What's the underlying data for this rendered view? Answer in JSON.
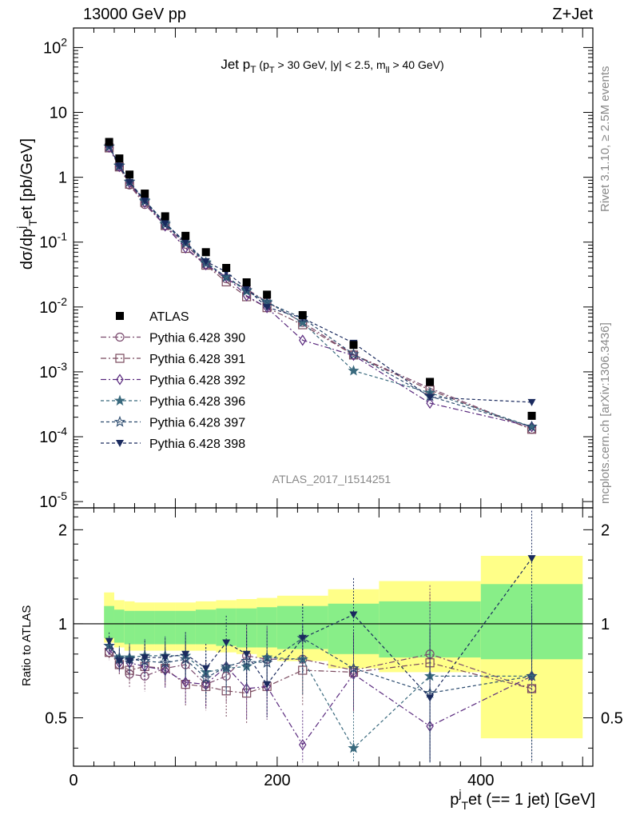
{
  "header": {
    "left": "13000 GeV pp",
    "right": "Z+Jet"
  },
  "side_labels": {
    "rivet": "Rivet 3.1.10, ≥ 2.5M events",
    "mcplots": "mcplots.cern.ch [arXiv:1306.3436]"
  },
  "chart_data": {
    "type": "scatter",
    "title": "Jet p_T (p_T > 30 GeV, |y| < 2.5, m_ll > 40 GeV)",
    "analysis_label": "ATLAS_2017_I1514251",
    "xlabel": "p_T^j et (== 1 jet) [GeV]",
    "ylabel": "dσ/dp_T^j et [pb/GeV]",
    "ratio_ylabel": "Ratio to ATLAS",
    "xlim": [
      0,
      510
    ],
    "ylim": [
      8e-06,
      200
    ],
    "yscale": "log",
    "ratio_ylim": [
      0.35,
      2.35
    ],
    "x_ticks": [
      "0",
      "200",
      "400"
    ],
    "y_ticks": [
      "10^-5",
      "10^-4",
      "10^-3",
      "10^-2",
      "10^-1",
      "1",
      "10",
      "10^2"
    ],
    "ratio_ticks": [
      "0.5",
      "1",
      "2"
    ],
    "legend_position": "left-middle",
    "bins": [
      [
        30,
        40
      ],
      [
        40,
        50
      ],
      [
        50,
        60
      ],
      [
        60,
        80
      ],
      [
        80,
        100
      ],
      [
        100,
        120
      ],
      [
        120,
        140
      ],
      [
        140,
        160
      ],
      [
        160,
        180
      ],
      [
        180,
        200
      ],
      [
        200,
        250
      ],
      [
        250,
        300
      ],
      [
        300,
        400
      ],
      [
        400,
        500
      ]
    ],
    "x": [
      35,
      45,
      55,
      70,
      90,
      110,
      130,
      150,
      170,
      190,
      225,
      275,
      350,
      450
    ],
    "data": {
      "name": "ATLAS",
      "values": [
        3.5,
        1.95,
        1.1,
        0.56,
        0.25,
        0.125,
        0.07,
        0.04,
        0.024,
        0.0155,
        0.0075,
        0.0026,
        0.0007,
        0.00021
      ],
      "band_green_lo": [
        0.9,
        0.87,
        0.86,
        0.86,
        0.86,
        0.86,
        0.86,
        0.85,
        0.84,
        0.84,
        0.83,
        0.8,
        0.78,
        0.77
      ],
      "band_green_hi": [
        1.14,
        1.11,
        1.1,
        1.1,
        1.1,
        1.1,
        1.11,
        1.12,
        1.12,
        1.13,
        1.14,
        1.16,
        1.18,
        1.34
      ],
      "band_yellow_lo": [
        0.87,
        0.84,
        0.82,
        0.82,
        0.82,
        0.82,
        0.82,
        0.81,
        0.8,
        0.78,
        0.76,
        0.72,
        0.7,
        0.43
      ],
      "band_yellow_hi": [
        1.26,
        1.19,
        1.18,
        1.17,
        1.17,
        1.17,
        1.18,
        1.19,
        1.2,
        1.21,
        1.23,
        1.29,
        1.37,
        1.65
      ]
    },
    "series": [
      {
        "name": "Pythia 6.428 390",
        "color": "#7a4a6e",
        "marker": "circle-open",
        "dash": "dashdot",
        "ratio": [
          0.81,
          0.74,
          0.69,
          0.68,
          0.72,
          0.74,
          0.64,
          0.68,
          0.79,
          0.77,
          0.77,
          0.71,
          0.8,
          0.62
        ]
      },
      {
        "name": "Pythia 6.428 391",
        "color": "#7a4a5e",
        "marker": "square-open",
        "dash": "dashdot",
        "ratio": [
          0.81,
          0.74,
          0.71,
          0.73,
          0.72,
          0.64,
          0.63,
          0.61,
          0.6,
          0.63,
          0.71,
          0.7,
          0.75,
          0.62
        ]
      },
      {
        "name": "Pythia 6.428 392",
        "color": "#5a2a7e",
        "marker": "diamond-open",
        "dash": "dashdot",
        "ratio": [
          0.83,
          0.75,
          0.75,
          0.73,
          0.71,
          0.65,
          0.64,
          0.73,
          0.62,
          0.63,
          0.41,
          0.69,
          0.47,
          0.68
        ]
      },
      {
        "name": "Pythia 6.428 396",
        "color": "#3a6a7e",
        "marker": "star-filled",
        "dash": "dashed",
        "ratio": [
          0.85,
          0.78,
          0.78,
          0.79,
          0.79,
          0.79,
          0.7,
          0.72,
          0.73,
          0.78,
          0.77,
          0.4,
          0.68,
          0.68
        ]
      },
      {
        "name": "Pythia 6.428 397",
        "color": "#2a4a6e",
        "marker": "star-open",
        "dash": "dashed",
        "ratio": [
          0.85,
          0.77,
          0.77,
          0.76,
          0.75,
          0.77,
          0.67,
          0.73,
          0.76,
          0.75,
          0.9,
          0.72,
          0.6,
          0.68
        ]
      },
      {
        "name": "Pythia 6.428 398",
        "color": "#1a2a5e",
        "marker": "triangle-down-filled",
        "dash": "dashed",
        "ratio": [
          0.88,
          0.76,
          0.76,
          0.78,
          0.78,
          0.8,
          0.72,
          0.87,
          0.8,
          0.64,
          0.9,
          1.07,
          0.58,
          1.62
        ]
      }
    ]
  }
}
